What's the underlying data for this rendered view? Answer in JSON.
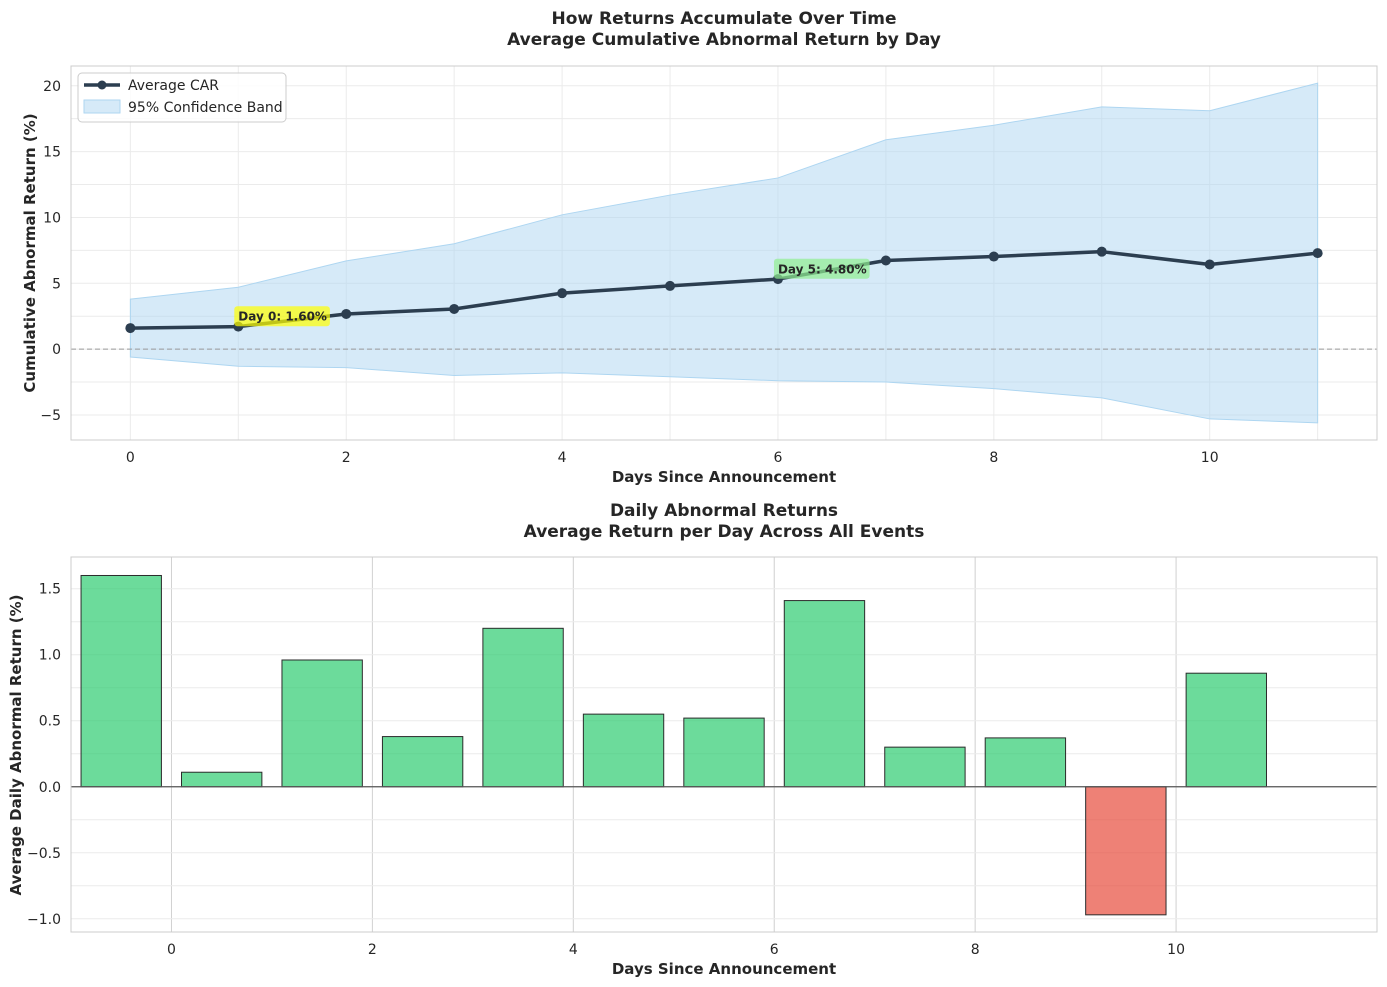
{
  "chart_data": [
    {
      "type": "line",
      "title": "How Returns Accumulate Over Time",
      "subtitle": "Average Cumulative Abnormal Return by Day",
      "xlabel": "Days Since Announcement",
      "ylabel": "Cumulative Abnormal Return (%)",
      "xlim": [
        -0.55,
        11.55
      ],
      "ylim": [
        -6.9,
        21.5
      ],
      "xticks": [
        0,
        2,
        4,
        6,
        8,
        10
      ],
      "yticks": [
        -5,
        0,
        5,
        10,
        15,
        20
      ],
      "grid": true,
      "legend_position": "top-left",
      "legend": [
        "Average CAR",
        "95% Confidence Band"
      ],
      "x": [
        0,
        1,
        2,
        3,
        4,
        5,
        6,
        7,
        8,
        9,
        10,
        11
      ],
      "series": [
        {
          "name": "Average CAR",
          "values": [
            1.6,
            1.71,
            2.67,
            3.05,
            4.25,
            4.8,
            5.32,
            6.73,
            7.03,
            7.4,
            6.43,
            7.29
          ]
        }
      ],
      "band": {
        "name": "95% Confidence Band",
        "upper": [
          3.8,
          4.7,
          6.7,
          8.0,
          10.2,
          11.7,
          13.0,
          15.9,
          17.0,
          18.4,
          18.1,
          20.2
        ],
        "lower": [
          -0.6,
          -1.3,
          -1.4,
          -2.0,
          -1.8,
          -2.1,
          -2.4,
          -2.5,
          -3.0,
          -3.7,
          -5.3,
          -5.6
        ]
      },
      "reference_line": 0,
      "annotations": [
        {
          "text": "Day 0: 1.60%",
          "x": 1,
          "y": 2.5,
          "color": "#ffff00"
        },
        {
          "text": "Day 5: 4.80%",
          "x": 6,
          "y": 6.1,
          "color": "#90ee90"
        }
      ],
      "colors": {
        "line": "#2c3e50",
        "band": "#aed6f1"
      }
    },
    {
      "type": "bar",
      "title": "Daily Abnormal Returns",
      "subtitle": "Average Return per Day Across All Events",
      "xlabel": "Days Since Announcement",
      "ylabel": "Average Daily Abnormal Return (%)",
      "xlim": [
        -1,
        12
      ],
      "ylim": [
        -1.1,
        1.74
      ],
      "xticks": [
        0,
        2,
        4,
        6,
        8,
        10
      ],
      "yticks": [
        -1.0,
        -0.5,
        0.0,
        0.5,
        1.0,
        1.5
      ],
      "grid": true,
      "categories": [
        0,
        1,
        2,
        3,
        4,
        5,
        6,
        7,
        8,
        9,
        10,
        11
      ],
      "values": [
        1.6,
        0.11,
        0.96,
        0.38,
        1.2,
        0.55,
        0.52,
        1.41,
        0.3,
        0.37,
        -0.97,
        0.86
      ],
      "colors": {
        "positive": "#2ecc71",
        "negative": "#e74c3c"
      }
    }
  ]
}
